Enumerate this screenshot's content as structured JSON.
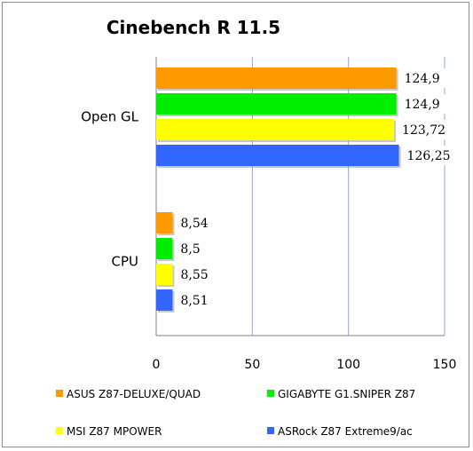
{
  "chart_data": {
    "type": "bar",
    "orientation": "horizontal",
    "title": "Cinebench R 11.5",
    "xlabel": "",
    "ylabel": "",
    "xlim": [
      0,
      150
    ],
    "x_ticks": [
      0,
      50,
      100,
      150
    ],
    "grid": "vertical",
    "legend_position": "bottom",
    "categories": [
      "Open GL",
      "CPU"
    ],
    "series": [
      {
        "name": "ASUS Z87-DELUXE/QUAD",
        "color": "#ff9900",
        "values": [
          124.9,
          8.54
        ],
        "labels": [
          "124,9",
          "8,54"
        ]
      },
      {
        "name": "GIGABYTE G1.SNIPER Z87",
        "color": "#00ee00",
        "values": [
          124.9,
          8.5
        ],
        "labels": [
          "124,9",
          "8,5"
        ]
      },
      {
        "name": "MSI Z87 MPOWER",
        "color": "#ffff00",
        "values": [
          123.72,
          8.55
        ],
        "labels": [
          "123,72",
          "8,55"
        ]
      },
      {
        "name": "ASRock Z87 Extreme9/ac",
        "color": "#3366ff",
        "values": [
          126.25,
          8.51
        ],
        "labels": [
          "126,25",
          "8,51"
        ]
      }
    ]
  }
}
